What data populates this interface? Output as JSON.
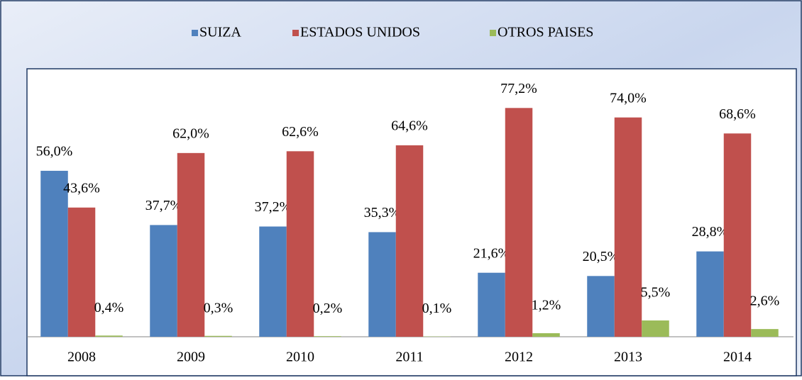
{
  "chart_data": {
    "type": "bar",
    "categories": [
      "2008",
      "2009",
      "2010",
      "2011",
      "2012",
      "2013",
      "2014"
    ],
    "series": [
      {
        "name": "SUIZA",
        "color": "#4f81bd",
        "values": [
          56.0,
          37.7,
          37.2,
          35.3,
          21.6,
          20.5,
          28.8
        ],
        "value_labels": [
          "56,0%",
          "37,7%",
          "37,2%",
          "35,3%",
          "21,6%",
          "20,5%",
          "28,8%"
        ]
      },
      {
        "name": "ESTADOS UNIDOS",
        "color": "#c0504d",
        "values": [
          43.6,
          62.0,
          62.6,
          64.6,
          77.2,
          74.0,
          68.6
        ],
        "value_labels": [
          "43,6%",
          "62,0%",
          "62,6%",
          "64,6%",
          "77,2%",
          "74,0%",
          "68,6%"
        ]
      },
      {
        "name": "OTROS PAISES",
        "color": "#9bbb59",
        "values": [
          0.4,
          0.3,
          0.2,
          0.1,
          1.2,
          5.5,
          2.6
        ],
        "value_labels": [
          "0,4%",
          "0,3%",
          "0,2%",
          "0,1%",
          "1,2%",
          "5,5%",
          "2,6%"
        ]
      }
    ],
    "ylim": [
      0,
      90
    ],
    "legend": "top"
  }
}
